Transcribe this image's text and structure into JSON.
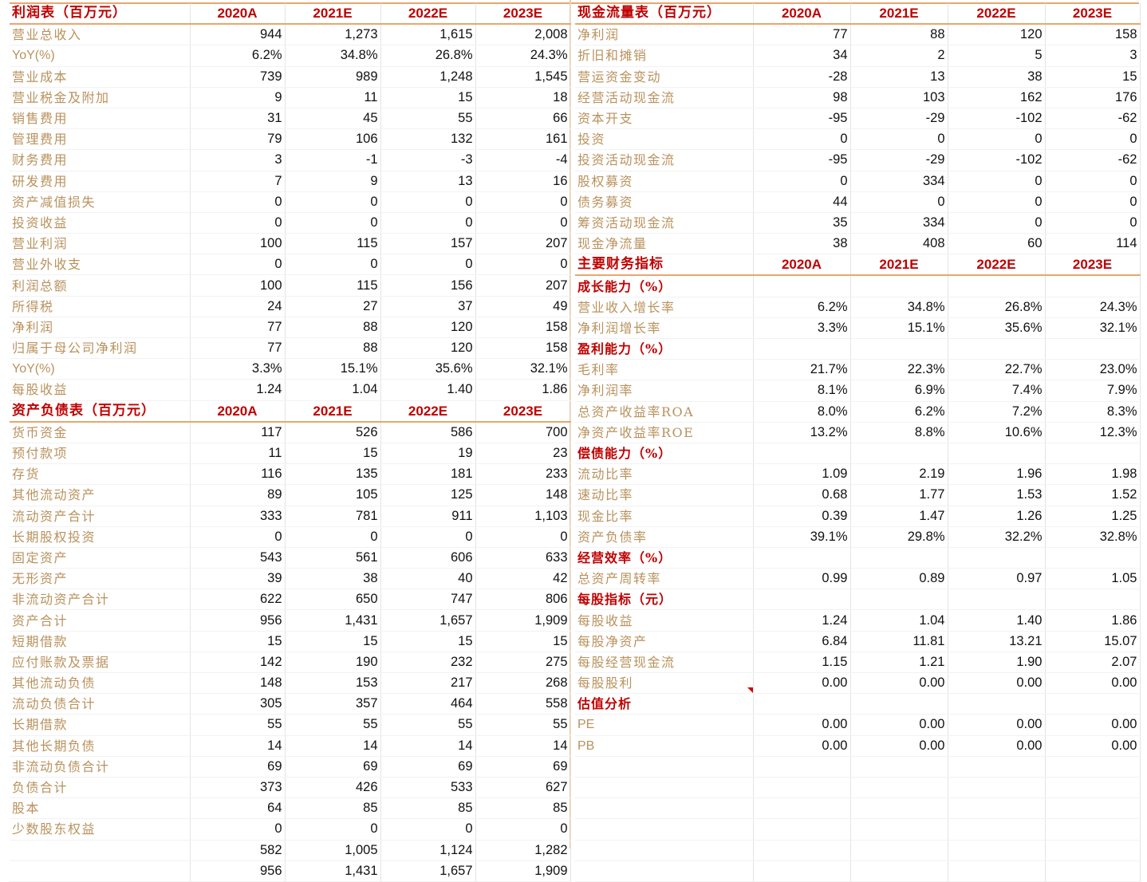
{
  "income_statement": {
    "title": "利润表（百万元）",
    "years": [
      "2020A",
      "2021E",
      "2022E",
      "2023E"
    ],
    "rows": [
      {
        "label": "营业总收入",
        "values": [
          "944",
          "1,273",
          "1,615",
          "2,008"
        ]
      },
      {
        "label": "YoY(%)",
        "values": [
          "6.2%",
          "34.8%",
          "26.8%",
          "24.3%"
        ]
      },
      {
        "label": "营业成本",
        "values": [
          "739",
          "989",
          "1,248",
          "1,545"
        ]
      },
      {
        "label": "营业税金及附加",
        "values": [
          "9",
          "11",
          "15",
          "18"
        ]
      },
      {
        "label": "销售费用",
        "values": [
          "31",
          "45",
          "55",
          "66"
        ]
      },
      {
        "label": "管理费用",
        "values": [
          "79",
          "106",
          "132",
          "161"
        ]
      },
      {
        "label": "财务费用",
        "values": [
          "3",
          "-1",
          "-3",
          "-4"
        ]
      },
      {
        "label": "研发费用",
        "values": [
          "7",
          "9",
          "13",
          "16"
        ]
      },
      {
        "label": "资产减值损失",
        "values": [
          "0",
          "0",
          "0",
          "0"
        ]
      },
      {
        "label": "投资收益",
        "values": [
          "0",
          "0",
          "0",
          "0"
        ]
      },
      {
        "label": "营业利润",
        "values": [
          "100",
          "115",
          "157",
          "207"
        ]
      },
      {
        "label": "营业外收支",
        "values": [
          "0",
          "0",
          "0",
          "0"
        ]
      },
      {
        "label": "利润总额",
        "values": [
          "100",
          "115",
          "156",
          "207"
        ]
      },
      {
        "label": "所得税",
        "values": [
          "24",
          "27",
          "37",
          "49"
        ]
      },
      {
        "label": "净利润",
        "values": [
          "77",
          "88",
          "120",
          "158"
        ]
      },
      {
        "label": "归属于母公司净利润",
        "values": [
          "77",
          "88",
          "120",
          "158"
        ]
      },
      {
        "label": "YoY(%)",
        "values": [
          "3.3%",
          "15.1%",
          "35.6%",
          "32.1%"
        ]
      },
      {
        "label": "每股收益",
        "values": [
          "1.24",
          "1.04",
          "1.40",
          "1.86"
        ]
      }
    ]
  },
  "balance_sheet": {
    "title": "资产负债表（百万元）",
    "years": [
      "2020A",
      "2021E",
      "2022E",
      "2023E"
    ],
    "rows": [
      {
        "label": "货币资金",
        "values": [
          "117",
          "526",
          "586",
          "700"
        ]
      },
      {
        "label": "预付款项",
        "values": [
          "11",
          "15",
          "19",
          "23"
        ]
      },
      {
        "label": "存货",
        "values": [
          "116",
          "135",
          "181",
          "233"
        ]
      },
      {
        "label": "其他流动资产",
        "values": [
          "89",
          "105",
          "125",
          "148"
        ]
      },
      {
        "label": "流动资产合计",
        "values": [
          "333",
          "781",
          "911",
          "1,103"
        ]
      },
      {
        "label": "长期股权投资",
        "values": [
          "0",
          "0",
          "0",
          "0"
        ]
      },
      {
        "label": "固定资产",
        "values": [
          "543",
          "561",
          "606",
          "633"
        ]
      },
      {
        "label": "无形资产",
        "values": [
          "39",
          "38",
          "40",
          "42"
        ]
      },
      {
        "label": "非流动资产合计",
        "values": [
          "622",
          "650",
          "747",
          "806"
        ]
      },
      {
        "label": "资产合计",
        "values": [
          "956",
          "1,431",
          "1,657",
          "1,909"
        ]
      },
      {
        "label": "短期借款",
        "values": [
          "15",
          "15",
          "15",
          "15"
        ]
      },
      {
        "label": "应付账款及票据",
        "values": [
          "142",
          "190",
          "232",
          "275"
        ]
      },
      {
        "label": "其他流动负债",
        "values": [
          "148",
          "153",
          "217",
          "268"
        ]
      },
      {
        "label": "流动负债合计",
        "values": [
          "305",
          "357",
          "464",
          "558"
        ]
      },
      {
        "label": "长期借款",
        "values": [
          "55",
          "55",
          "55",
          "55"
        ]
      },
      {
        "label": "其他长期负债",
        "values": [
          "14",
          "14",
          "14",
          "14"
        ]
      },
      {
        "label": "非流动负债合计",
        "values": [
          "69",
          "69",
          "69",
          "69"
        ]
      },
      {
        "label": "负债合计",
        "values": [
          "373",
          "426",
          "533",
          "627"
        ]
      },
      {
        "label": "股本",
        "values": [
          "64",
          "85",
          "85",
          "85"
        ]
      },
      {
        "label": "少数股东权益",
        "values": [
          "0",
          "0",
          "0",
          "0"
        ]
      },
      {
        "label": "",
        "values": [
          "582",
          "1,005",
          "1,124",
          "1,282"
        ]
      },
      {
        "label": "",
        "values": [
          "956",
          "1,431",
          "1,657",
          "1,909"
        ]
      }
    ]
  },
  "cash_flow": {
    "title": "现金流量表（百万元）",
    "years": [
      "2020A",
      "2021E",
      "2022E",
      "2023E"
    ],
    "rows": [
      {
        "label": "净利润",
        "values": [
          "77",
          "88",
          "120",
          "158"
        ]
      },
      {
        "label": "折旧和摊销",
        "values": [
          "34",
          "2",
          "5",
          "3"
        ]
      },
      {
        "label": "营运资金变动",
        "values": [
          "-28",
          "13",
          "38",
          "15"
        ]
      },
      {
        "label": "经营活动现金流",
        "values": [
          "98",
          "103",
          "162",
          "176"
        ]
      },
      {
        "label": "资本开支",
        "values": [
          "-95",
          "-29",
          "-102",
          "-62"
        ]
      },
      {
        "label": "投资",
        "values": [
          "0",
          "0",
          "0",
          "0"
        ]
      },
      {
        "label": "投资活动现金流",
        "values": [
          "-95",
          "-29",
          "-102",
          "-62"
        ]
      },
      {
        "label": "股权募资",
        "values": [
          "0",
          "334",
          "0",
          "0"
        ]
      },
      {
        "label": "债务募资",
        "values": [
          "44",
          "0",
          "0",
          "0"
        ]
      },
      {
        "label": "筹资活动现金流",
        "values": [
          "35",
          "334",
          "0",
          "0"
        ]
      },
      {
        "label": "现金净流量",
        "values": [
          "38",
          "408",
          "60",
          "114"
        ]
      }
    ]
  },
  "ratios": {
    "title": "主要财务指标",
    "years": [
      "2020A",
      "2021E",
      "2022E",
      "2023E"
    ],
    "sections": [
      {
        "title": "成长能力（%）",
        "rows": [
          {
            "label": "营业收入增长率",
            "values": [
              "6.2%",
              "34.8%",
              "26.8%",
              "24.3%"
            ]
          },
          {
            "label": "净利润增长率",
            "values": [
              "3.3%",
              "15.1%",
              "35.6%",
              "32.1%"
            ]
          }
        ]
      },
      {
        "title": "盈利能力（%）",
        "rows": [
          {
            "label": "毛利率",
            "values": [
              "21.7%",
              "22.3%",
              "22.7%",
              "23.0%"
            ]
          },
          {
            "label": "净利润率",
            "values": [
              "8.1%",
              "6.9%",
              "7.4%",
              "7.9%"
            ]
          },
          {
            "label": "总资产收益率ROA",
            "values": [
              "8.0%",
              "6.2%",
              "7.2%",
              "8.3%"
            ]
          },
          {
            "label": "净资产收益率ROE",
            "values": [
              "13.2%",
              "8.8%",
              "10.6%",
              "12.3%"
            ]
          }
        ]
      },
      {
        "title": "偿债能力（%）",
        "rows": [
          {
            "label": "流动比率",
            "values": [
              "1.09",
              "2.19",
              "1.96",
              "1.98"
            ]
          },
          {
            "label": "速动比率",
            "values": [
              "0.68",
              "1.77",
              "1.53",
              "1.52"
            ]
          },
          {
            "label": "现金比率",
            "values": [
              "0.39",
              "1.47",
              "1.26",
              "1.25"
            ]
          },
          {
            "label": "资产负债率",
            "values": [
              "39.1%",
              "29.8%",
              "32.2%",
              "32.8%"
            ]
          }
        ]
      },
      {
        "title": "经营效率（%）",
        "rows": [
          {
            "label": "总资产周转率",
            "values": [
              "0.99",
              "0.89",
              "0.97",
              "1.05"
            ]
          }
        ]
      },
      {
        "title": "每股指标（元）",
        "rows": [
          {
            "label": "每股收益",
            "values": [
              "1.24",
              "1.04",
              "1.40",
              "1.86"
            ]
          },
          {
            "label": "每股净资产",
            "values": [
              "6.84",
              "11.81",
              "13.21",
              "15.07"
            ]
          },
          {
            "label": "每股经营现金流",
            "values": [
              "1.15",
              "1.21",
              "1.90",
              "2.07"
            ]
          },
          {
            "label": "每股股利",
            "values": [
              "0.00",
              "0.00",
              "0.00",
              "0.00"
            ]
          }
        ]
      },
      {
        "title": "估值分析",
        "rows": [
          {
            "label": "PE",
            "values": [
              "0.00",
              "0.00",
              "0.00",
              "0.00"
            ]
          },
          {
            "label": "PB",
            "values": [
              "0.00",
              "0.00",
              "0.00",
              "0.00"
            ]
          }
        ]
      }
    ]
  },
  "colors": {
    "header_red": "#c00000",
    "label_gold": "#b9925d",
    "rule_orange": "#e8a76c"
  }
}
